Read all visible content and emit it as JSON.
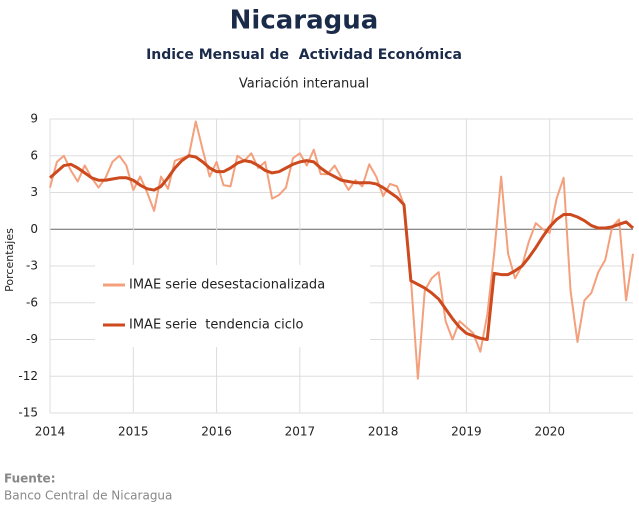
{
  "chart_data": {
    "type": "line",
    "title": "Nicaragua",
    "subtitle": "Indice Mensual de  Actividad Económica",
    "subtitle2": "Variación interanual",
    "y_label": "Porcentajes",
    "source_label": "Fuente:",
    "source": "Banco Central de Nicaragua",
    "x": [
      2014.0,
      2014.083,
      2014.167,
      2014.25,
      2014.333,
      2014.417,
      2014.5,
      2014.583,
      2014.667,
      2014.75,
      2014.833,
      2014.917,
      2015.0,
      2015.083,
      2015.167,
      2015.25,
      2015.333,
      2015.417,
      2015.5,
      2015.583,
      2015.667,
      2015.75,
      2015.833,
      2015.917,
      2016.0,
      2016.083,
      2016.167,
      2016.25,
      2016.333,
      2016.417,
      2016.5,
      2016.583,
      2016.667,
      2016.75,
      2016.833,
      2016.917,
      2017.0,
      2017.083,
      2017.167,
      2017.25,
      2017.333,
      2017.417,
      2017.5,
      2017.583,
      2017.667,
      2017.75,
      2017.833,
      2017.917,
      2018.0,
      2018.083,
      2018.167,
      2018.25,
      2018.333,
      2018.417,
      2018.5,
      2018.583,
      2018.667,
      2018.75,
      2018.833,
      2018.917,
      2019.0,
      2019.083,
      2019.167,
      2019.25,
      2019.333,
      2019.417,
      2019.5,
      2019.583,
      2019.667,
      2019.75,
      2019.833,
      2019.917,
      2020.0,
      2020.083,
      2020.167,
      2020.25,
      2020.333,
      2020.417,
      2020.5,
      2020.583,
      2020.667,
      2020.75,
      2020.833,
      2020.917,
      2021.0
    ],
    "series": [
      {
        "name": "IMAE serie desestacionalizada",
        "color": "#f4a07c",
        "values": [
          3.4,
          5.5,
          6.0,
          4.8,
          3.9,
          5.2,
          4.2,
          3.4,
          4.2,
          5.5,
          6.0,
          5.2,
          3.2,
          4.3,
          3.0,
          1.5,
          4.3,
          3.3,
          5.6,
          5.8,
          6.0,
          8.8,
          6.5,
          4.3,
          5.5,
          3.6,
          3.5,
          6.0,
          5.6,
          6.2,
          5.0,
          5.5,
          2.5,
          2.8,
          3.4,
          5.8,
          6.2,
          5.2,
          6.5,
          4.5,
          4.5,
          5.2,
          4.2,
          3.2,
          4.0,
          3.5,
          5.3,
          4.3,
          2.7,
          3.7,
          3.5,
          2.0,
          -4.0,
          -12.2,
          -5.0,
          -4.0,
          -3.5,
          -7.5,
          -9.0,
          -7.5,
          -8.0,
          -8.5,
          -10.0,
          -7.0,
          -2.0,
          4.3,
          -2.0,
          -4.0,
          -3.0,
          -1.0,
          0.5,
          0.0,
          -0.3,
          2.5,
          4.2,
          -5.0,
          -9.2,
          -5.8,
          -5.2,
          -3.5,
          -2.5,
          0.2,
          0.8,
          -5.8,
          -2.0
        ]
      },
      {
        "name": "IMAE serie  tendencia ciclo",
        "color": "#cc4a1e",
        "values": [
          4.2,
          4.7,
          5.2,
          5.3,
          5.0,
          4.6,
          4.2,
          4.0,
          4.0,
          4.1,
          4.2,
          4.2,
          4.0,
          3.6,
          3.3,
          3.2,
          3.5,
          4.2,
          5.0,
          5.6,
          6.0,
          5.9,
          5.5,
          5.0,
          4.7,
          4.7,
          5.0,
          5.4,
          5.6,
          5.5,
          5.2,
          4.8,
          4.6,
          4.7,
          5.0,
          5.3,
          5.5,
          5.6,
          5.5,
          5.0,
          4.6,
          4.3,
          4.0,
          3.9,
          3.8,
          3.8,
          3.8,
          3.7,
          3.4,
          3.0,
          2.6,
          2.0,
          -4.2,
          -4.5,
          -4.8,
          -5.2,
          -5.7,
          -6.5,
          -7.3,
          -8.0,
          -8.5,
          -8.7,
          -8.9,
          -9.0,
          -3.6,
          -3.7,
          -3.7,
          -3.4,
          -3.0,
          -2.3,
          -1.5,
          -0.6,
          0.2,
          0.8,
          1.2,
          1.2,
          1.0,
          0.7,
          0.3,
          0.1,
          0.1,
          0.2,
          0.4,
          0.6,
          0.1
        ]
      }
    ],
    "xlim": [
      2014,
      2021
    ],
    "xticks": [
      2014,
      2015,
      2016,
      2017,
      2018,
      2019,
      2020
    ],
    "ylim": [
      -15,
      9
    ],
    "yticks": [
      -15,
      -12,
      -9,
      -6,
      -3,
      0,
      3,
      6,
      9
    ],
    "grid": true
  }
}
